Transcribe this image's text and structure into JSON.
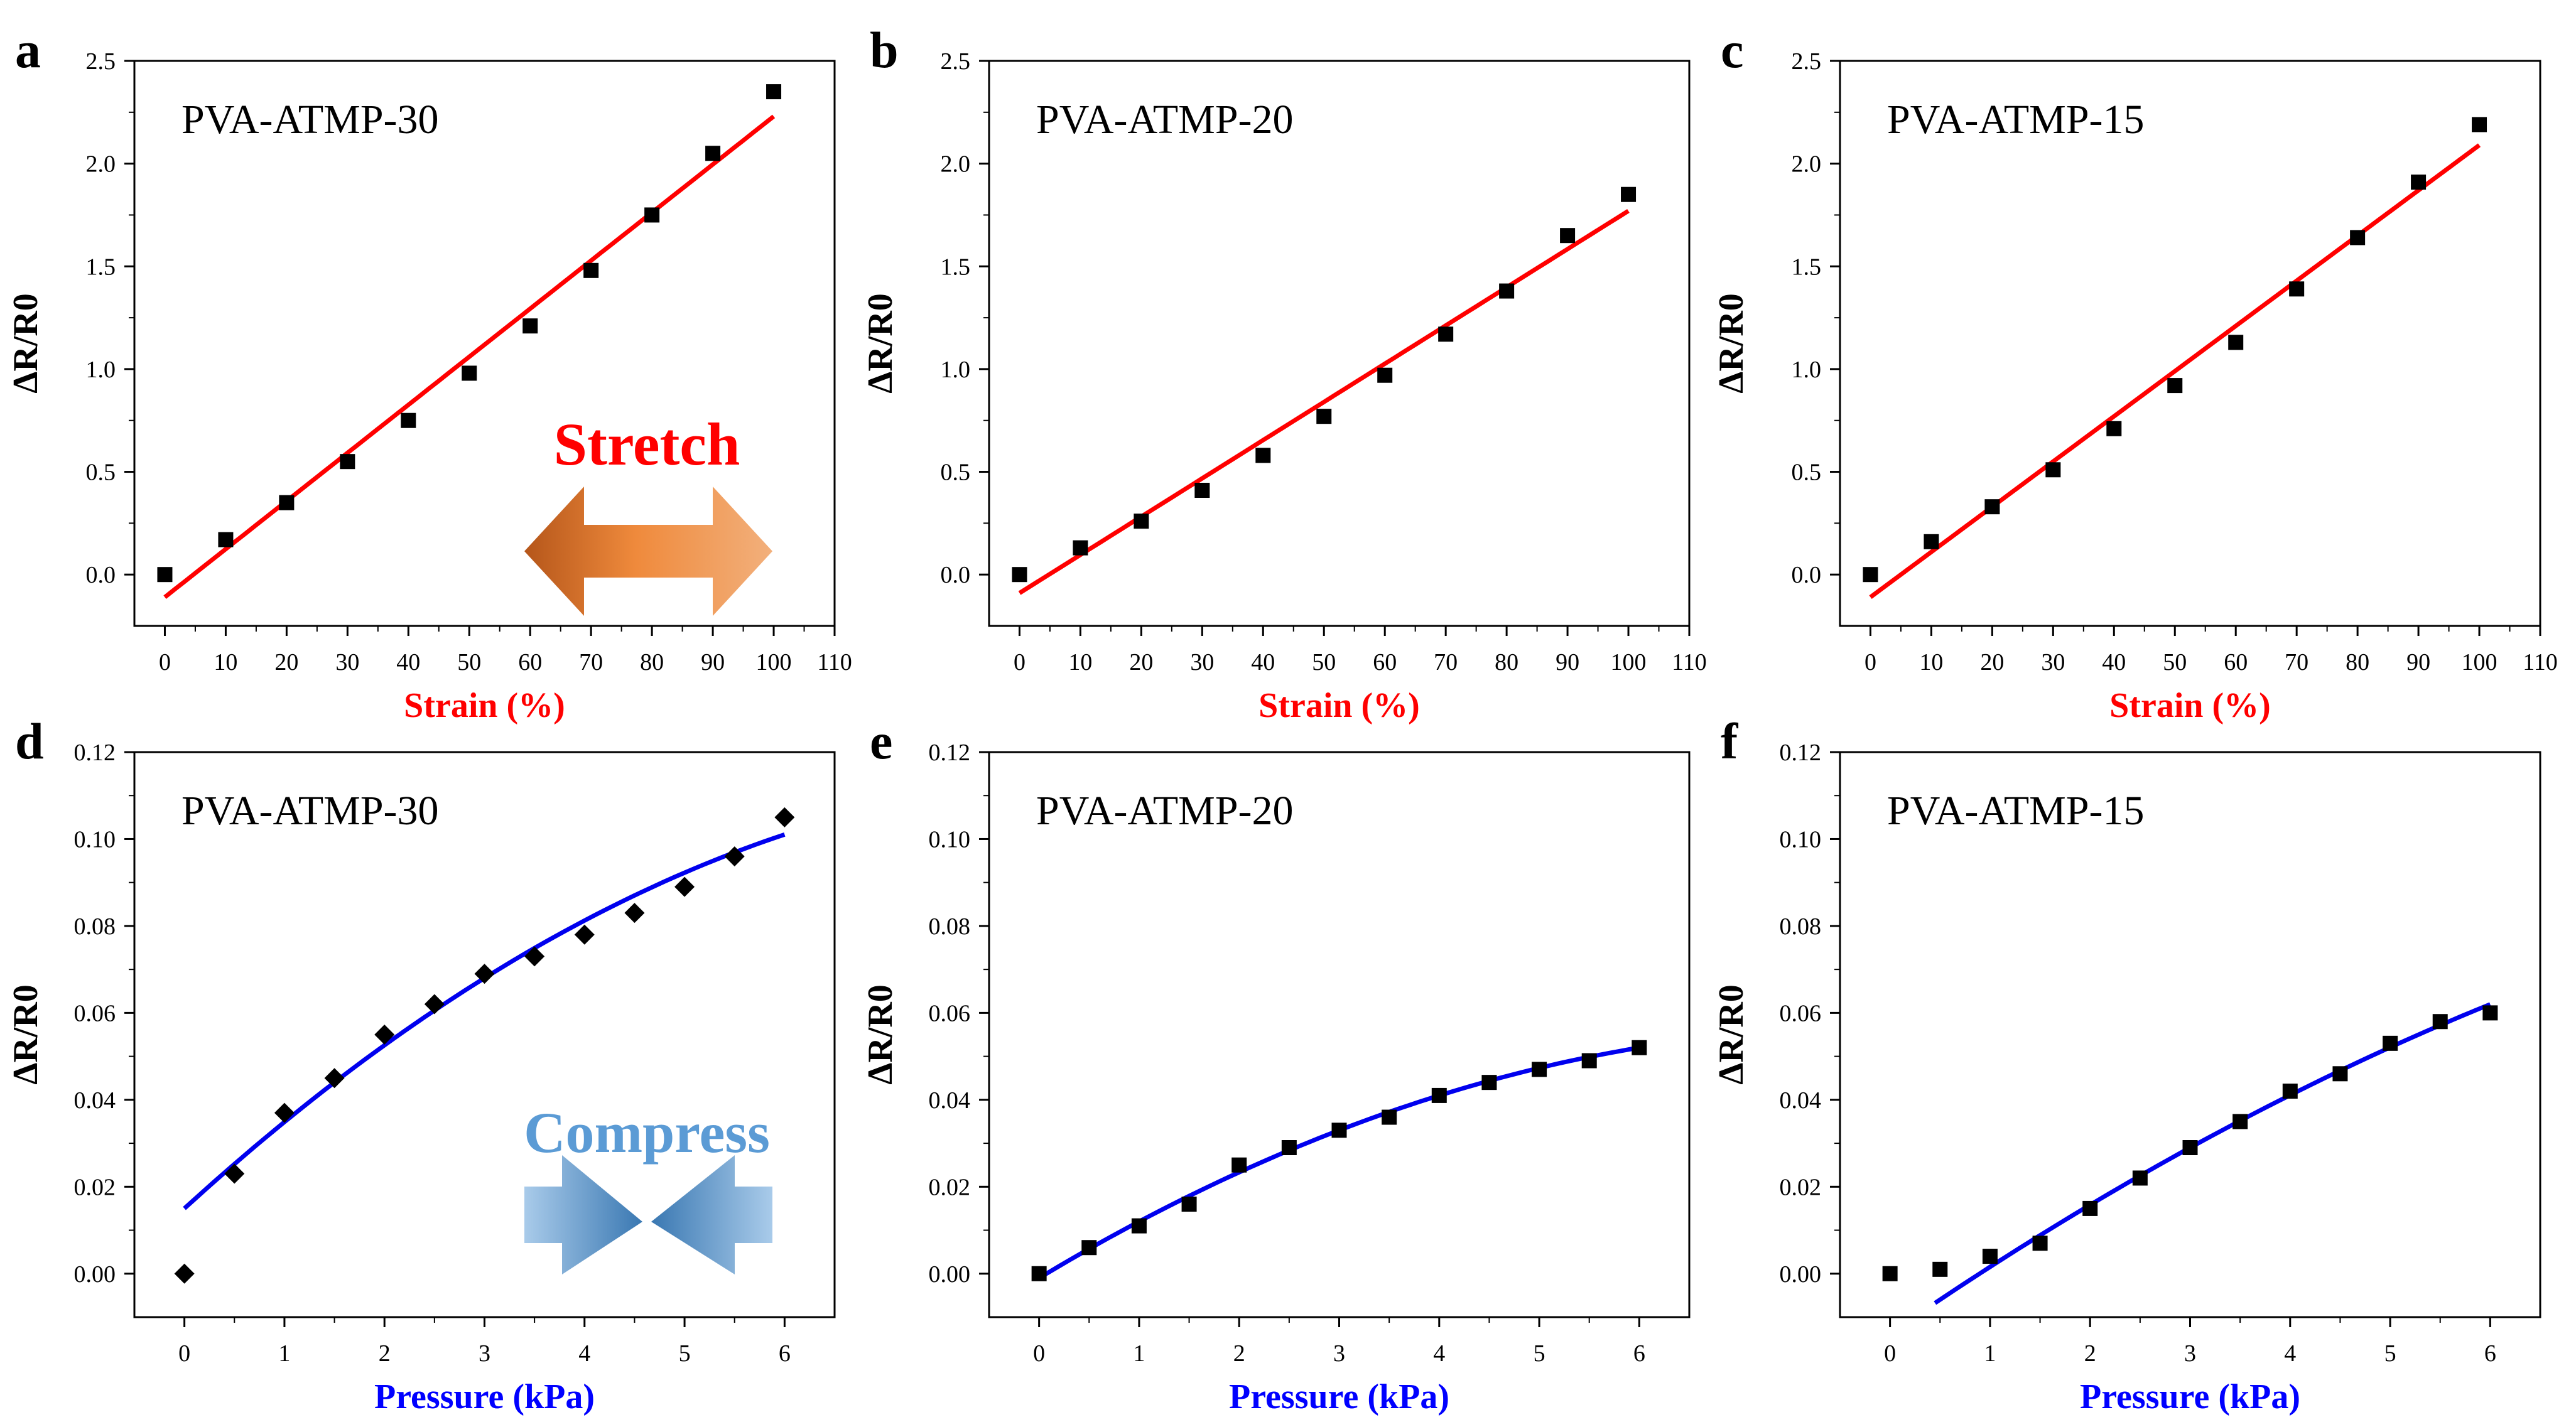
{
  "colors": {
    "strain_label": "#ff0000",
    "pressure_label": "#0000ff",
    "fit_strain": "#ff0000",
    "fit_pressure": "#0000ee",
    "markers": "#000000"
  },
  "annotations": {
    "stretch": "Stretch",
    "compress": "Compress"
  },
  "chart_data": [
    {
      "panel": "a",
      "type": "scatter",
      "title": "PVA-ATMP-30",
      "xlabel": "Strain (%)",
      "ylabel": "ΔR/R0",
      "xlim": [
        -5,
        110
      ],
      "ylim": [
        -0.25,
        2.5
      ],
      "xticks": [
        0,
        10,
        20,
        30,
        40,
        50,
        60,
        70,
        80,
        90,
        100,
        110
      ],
      "yticks": [
        0.0,
        0.5,
        1.0,
        1.5,
        2.0,
        2.5
      ],
      "marker": "square",
      "x": [
        0,
        10,
        20,
        30,
        40,
        50,
        60,
        70,
        80,
        90,
        100
      ],
      "y": [
        0,
        0.17,
        0.35,
        0.55,
        0.75,
        0.98,
        1.21,
        1.48,
        1.75,
        2.05,
        2.35
      ],
      "fit": {
        "type": "linear",
        "x_range": [
          0,
          100
        ],
        "coef": [
          -0.11,
          0.0234,
          0
        ]
      }
    },
    {
      "panel": "b",
      "type": "scatter",
      "title": "PVA-ATMP-20",
      "xlabel": "Strain (%)",
      "ylabel": "ΔR/R0",
      "xlim": [
        -5,
        110
      ],
      "ylim": [
        -0.25,
        2.5
      ],
      "xticks": [
        0,
        10,
        20,
        30,
        40,
        50,
        60,
        70,
        80,
        90,
        100,
        110
      ],
      "yticks": [
        0.0,
        0.5,
        1.0,
        1.5,
        2.0,
        2.5
      ],
      "marker": "square",
      "x": [
        0,
        10,
        20,
        30,
        40,
        50,
        60,
        70,
        80,
        90,
        100
      ],
      "y": [
        0,
        0.13,
        0.26,
        0.41,
        0.58,
        0.77,
        0.97,
        1.17,
        1.38,
        1.65,
        1.85
      ],
      "fit": {
        "type": "linear",
        "x_range": [
          0,
          100
        ],
        "coef": [
          -0.09,
          0.0186,
          0
        ]
      }
    },
    {
      "panel": "c",
      "type": "scatter",
      "title": "PVA-ATMP-15",
      "xlabel": "Strain (%)",
      "ylabel": "ΔR/R0",
      "xlim": [
        -5,
        110
      ],
      "ylim": [
        -0.25,
        2.5
      ],
      "xticks": [
        0,
        10,
        20,
        30,
        40,
        50,
        60,
        70,
        80,
        90,
        100,
        110
      ],
      "yticks": [
        0.0,
        0.5,
        1.0,
        1.5,
        2.0,
        2.5
      ],
      "marker": "square",
      "x": [
        0,
        10,
        20,
        30,
        40,
        50,
        60,
        70,
        80,
        90,
        100
      ],
      "y": [
        0,
        0.16,
        0.33,
        0.51,
        0.71,
        0.92,
        1.13,
        1.39,
        1.64,
        1.91,
        2.19
      ],
      "fit": {
        "type": "linear",
        "x_range": [
          0,
          100
        ],
        "coef": [
          -0.11,
          0.022,
          0
        ]
      }
    },
    {
      "panel": "d",
      "type": "scatter",
      "title": "PVA-ATMP-30",
      "xlabel": "Pressure (kPa)",
      "ylabel": "ΔR/R0",
      "xlim": [
        -0.5,
        6.5
      ],
      "ylim": [
        -0.01,
        0.12
      ],
      "xticks": [
        0,
        1,
        2,
        3,
        4,
        5,
        6
      ],
      "yticks": [
        0.0,
        0.02,
        0.04,
        0.06,
        0.08,
        0.1,
        0.12
      ],
      "marker": "diamond",
      "x": [
        0,
        0.5,
        1,
        1.5,
        2,
        2.5,
        3,
        3.5,
        4,
        4.5,
        5,
        5.5,
        6
      ],
      "y": [
        0,
        0.023,
        0.037,
        0.045,
        0.055,
        0.062,
        0.069,
        0.073,
        0.078,
        0.083,
        0.089,
        0.096,
        0.105
      ],
      "fit": {
        "type": "quadratic",
        "x_range": [
          0,
          6
        ],
        "coef": [
          0.015,
          0.021,
          -0.00111
        ]
      }
    },
    {
      "panel": "e",
      "type": "scatter",
      "title": "PVA-ATMP-20",
      "xlabel": "Pressure (kPa)",
      "ylabel": "ΔR/R0",
      "xlim": [
        -0.5,
        6.5
      ],
      "ylim": [
        -0.01,
        0.12
      ],
      "xticks": [
        0,
        1,
        2,
        3,
        4,
        5,
        6
      ],
      "yticks": [
        0.0,
        0.02,
        0.04,
        0.06,
        0.08,
        0.1,
        0.12
      ],
      "marker": "square",
      "x": [
        0,
        0.5,
        1,
        1.5,
        2,
        2.5,
        3,
        3.5,
        4,
        4.5,
        5,
        5.5,
        6
      ],
      "y": [
        0,
        0.006,
        0.011,
        0.016,
        0.025,
        0.029,
        0.033,
        0.036,
        0.041,
        0.044,
        0.047,
        0.049,
        0.052
      ],
      "fit": {
        "type": "quadratic",
        "x_range": [
          0,
          6
        ],
        "coef": [
          -0.001,
          0.01383,
          -0.000833
        ]
      }
    },
    {
      "panel": "f",
      "type": "scatter",
      "title": "PVA-ATMP-15",
      "xlabel": "Pressure (kPa)",
      "ylabel": "ΔR/R0",
      "xlim": [
        -0.5,
        6.5
      ],
      "ylim": [
        -0.01,
        0.12
      ],
      "xticks": [
        0,
        1,
        2,
        3,
        4,
        5,
        6
      ],
      "yticks": [
        0.0,
        0.02,
        0.04,
        0.06,
        0.08,
        0.1,
        0.12
      ],
      "marker": "square",
      "x": [
        0,
        0.5,
        1,
        1.5,
        2,
        2.5,
        3,
        3.5,
        4,
        4.5,
        5,
        5.5,
        6
      ],
      "y": [
        0,
        0.001,
        0.004,
        0.007,
        0.015,
        0.022,
        0.029,
        0.035,
        0.042,
        0.046,
        0.053,
        0.058,
        0.06
      ],
      "fit": {
        "type": "quadratic",
        "x_range": [
          0.45,
          6
        ],
        "coef": [
          -0.0138,
          0.0159,
          -0.000545
        ]
      }
    }
  ]
}
